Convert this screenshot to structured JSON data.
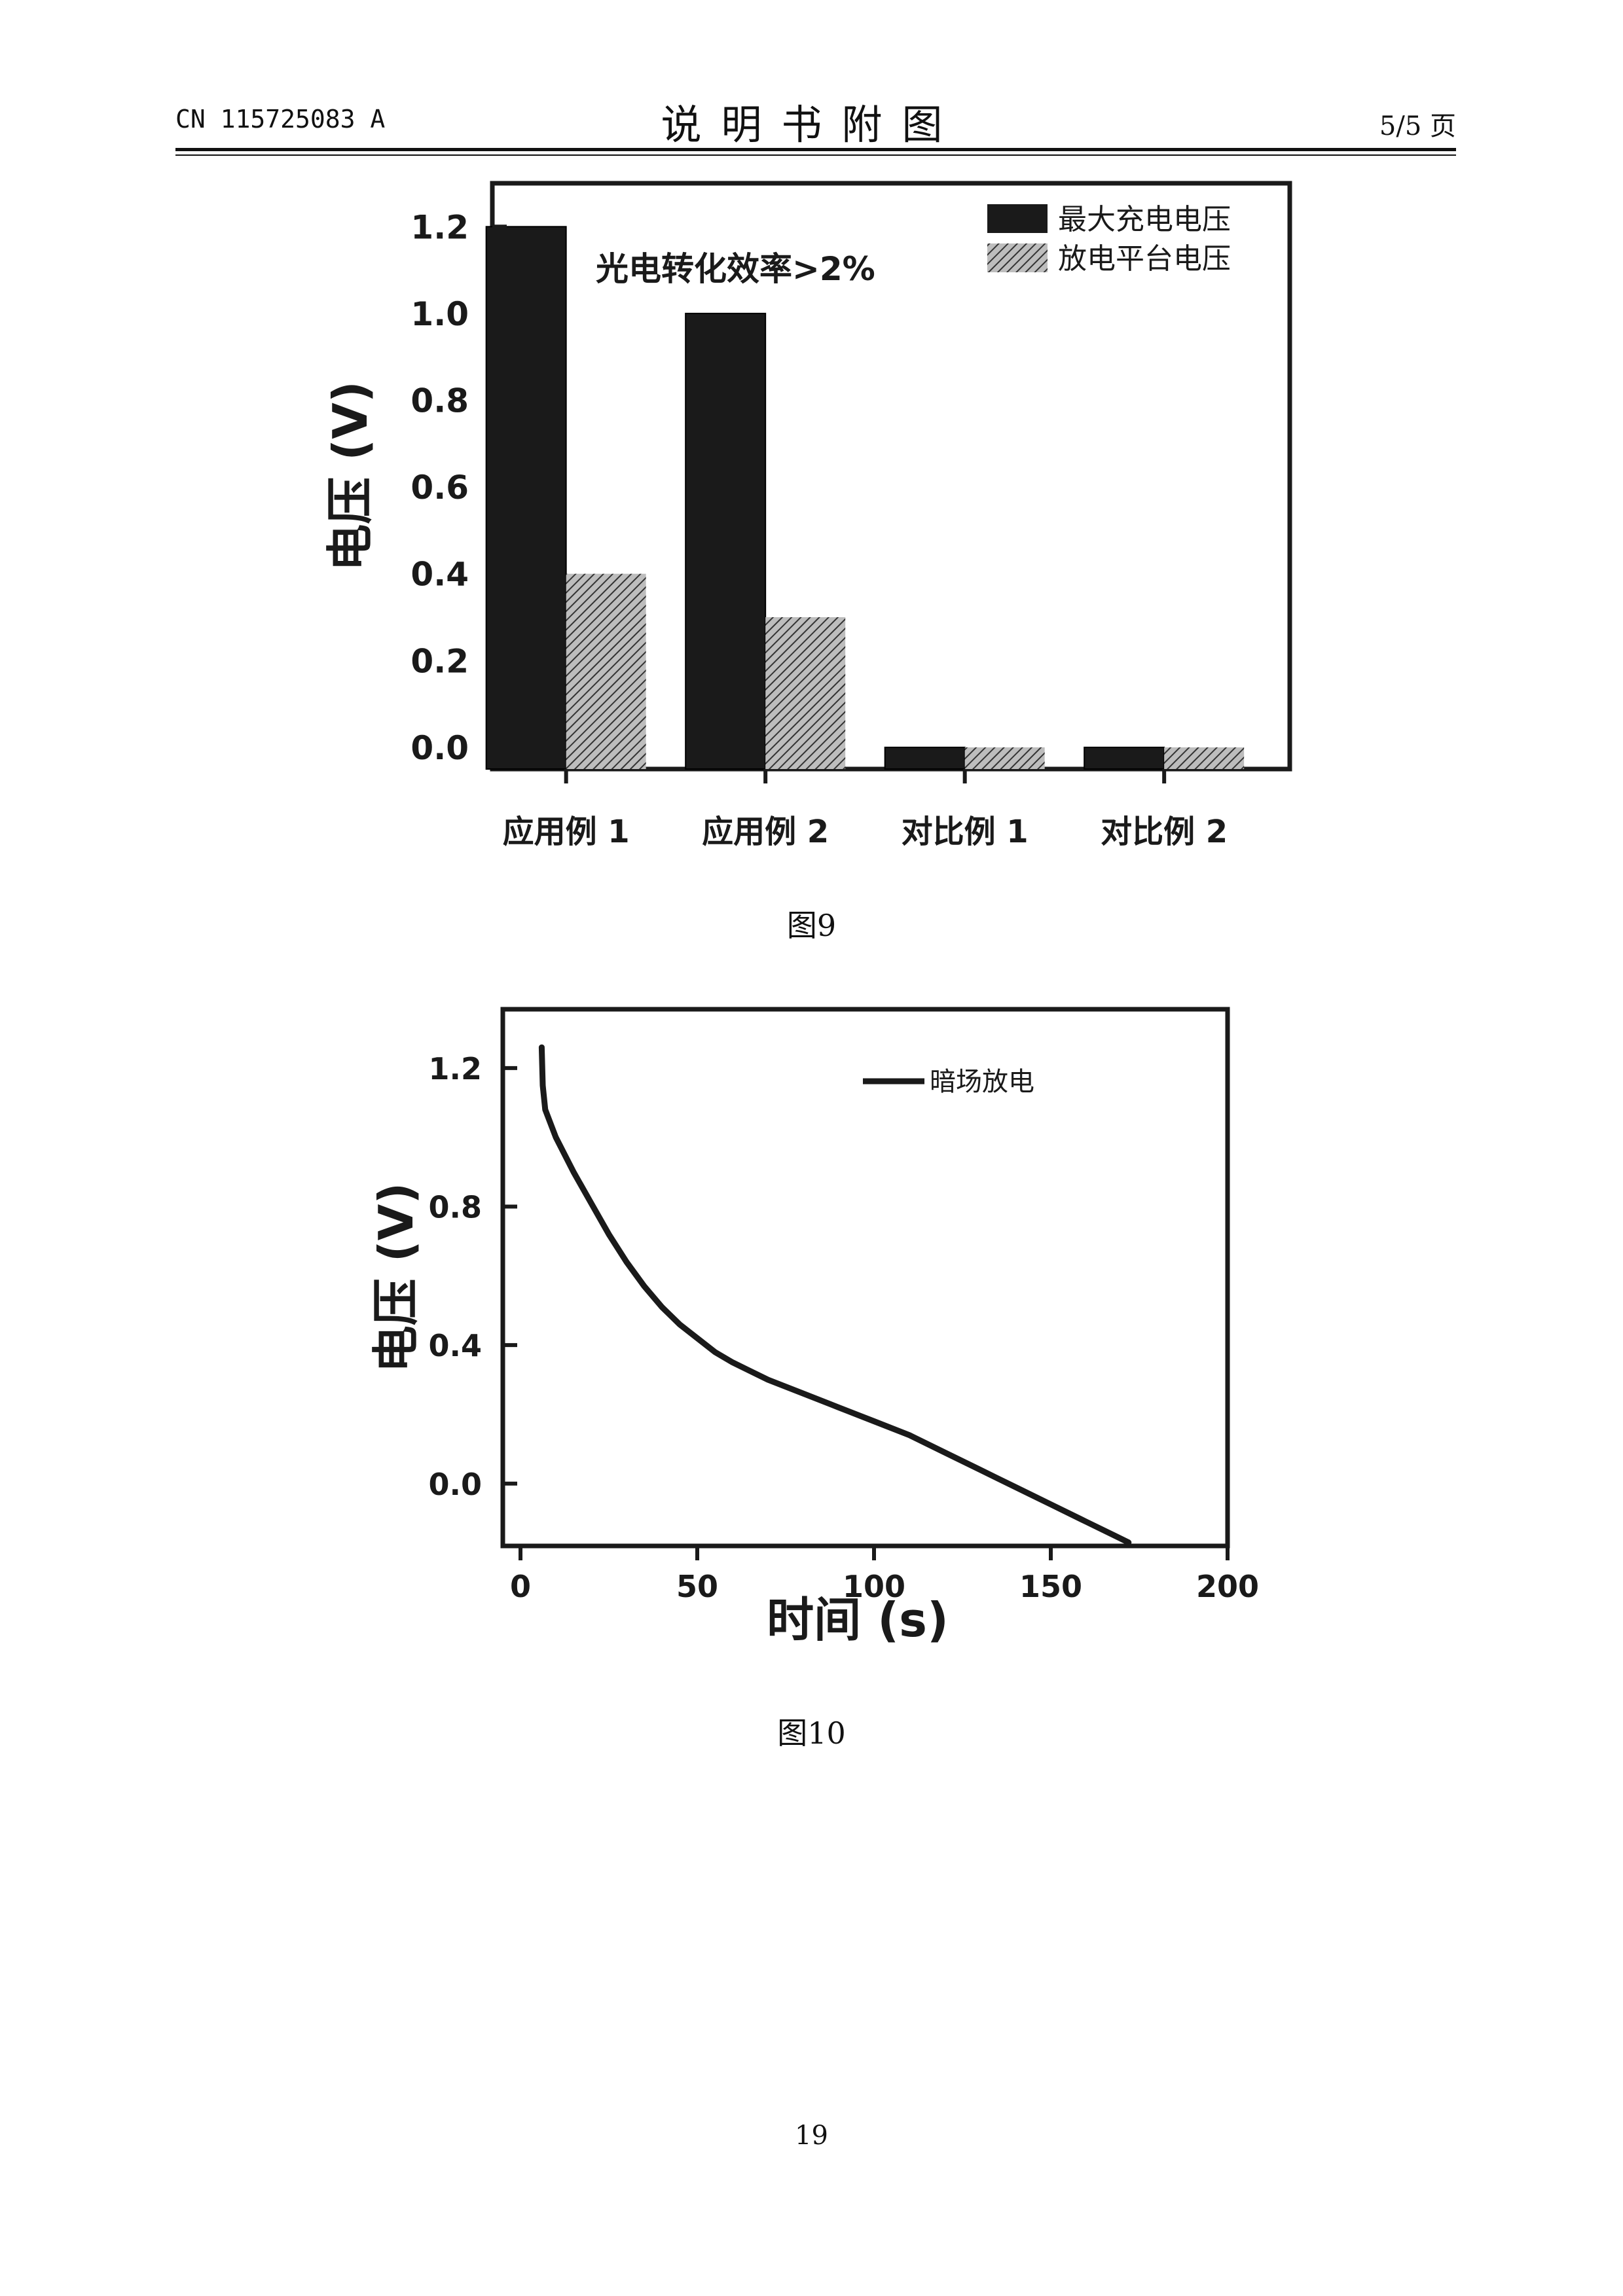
{
  "header": {
    "publication_number": "CN 115725083 A",
    "title": "说明书附图",
    "page_indicator": "5/5 页"
  },
  "charts": [
    {
      "caption": "图9",
      "chart_data": {
        "type": "bar",
        "categories": [
          "应用例 1",
          "应用例 2",
          "对比例 1",
          "对比例 2"
        ],
        "series": [
          {
            "name": "最大充电电压",
            "values": [
              1.2,
              1.0,
              0.0,
              0.0
            ],
            "color": "#1a1a1a",
            "pattern": "solid"
          },
          {
            "name": "放电平台电压",
            "values": [
              0.4,
              0.3,
              0.0,
              0.0
            ],
            "color": "#777777",
            "pattern": "hatched"
          }
        ],
        "ylabel": "电压 (V)",
        "xlabel": "",
        "ylim": [
          -0.05,
          1.3
        ],
        "yticks": [
          0.0,
          0.2,
          0.4,
          0.6,
          0.8,
          1.0,
          1.2
        ],
        "ytick_labels": [
          "0.0",
          "0.2",
          "0.4",
          "0.6",
          "0.8",
          "1.0",
          "1.2"
        ],
        "annotation": "光电转化效率>2%",
        "legend_position": "top-right",
        "grid": false
      }
    },
    {
      "caption": "图10",
      "chart_data": {
        "type": "line",
        "series": [
          {
            "name": "暗场放电",
            "color": "#1a1a1a",
            "x": [
              6,
              6.3,
              7,
              10,
              15,
              20,
              25,
              30,
              35,
              40,
              45,
              50,
              55,
              60,
              70,
              80,
              90,
              100,
              110,
              120,
              130,
              140,
              150,
              160,
              168,
              172
            ],
            "y": [
              1.26,
              1.15,
              1.08,
              1.0,
              0.9,
              0.81,
              0.72,
              0.64,
              0.57,
              0.51,
              0.46,
              0.42,
              0.38,
              0.35,
              0.3,
              0.26,
              0.22,
              0.18,
              0.14,
              0.09,
              0.04,
              -0.01,
              -0.06,
              -0.11,
              -0.15,
              -0.17
            ]
          }
        ],
        "xlabel": "时间 (s)",
        "ylabel": "电压 (V)",
        "xlim": [
          -5,
          200
        ],
        "ylim": [
          -0.18,
          1.37
        ],
        "xticks": [
          0,
          50,
          100,
          150,
          200
        ],
        "xtick_labels": [
          "0",
          "50",
          "100",
          "150",
          "200"
        ],
        "yticks": [
          0.0,
          0.4,
          0.8,
          1.2
        ],
        "ytick_labels": [
          "0.0",
          "0.4",
          "0.8",
          "1.2"
        ],
        "legend_position": "top-right",
        "grid": false
      }
    }
  ],
  "footer": {
    "page_number": "19"
  }
}
